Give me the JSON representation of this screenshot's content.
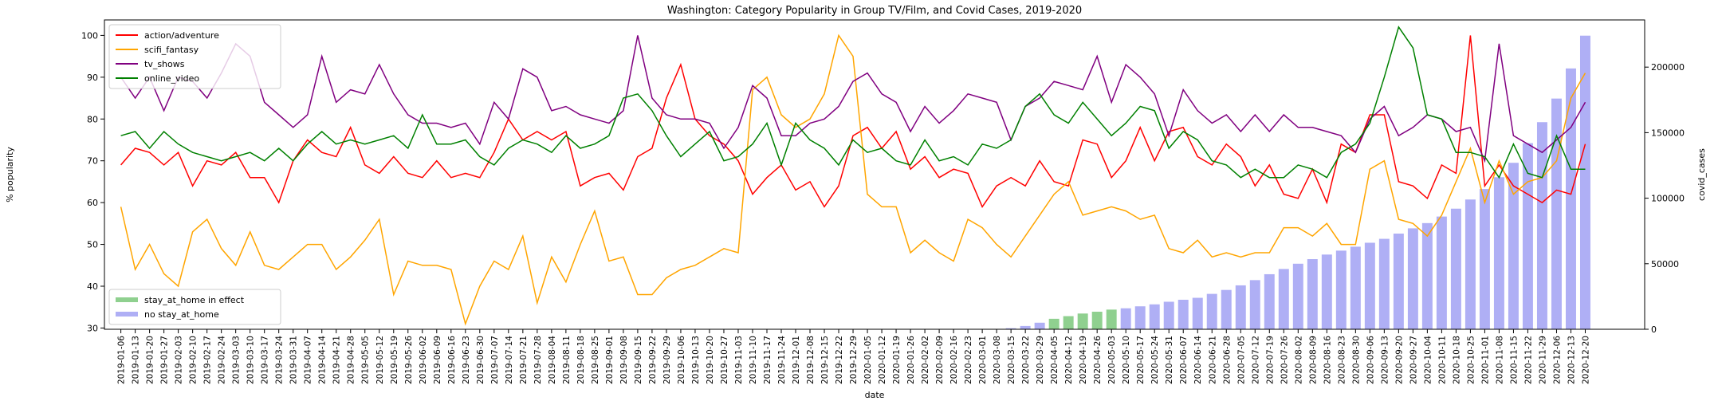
{
  "chart_data": {
    "type": "line",
    "title": "Washington: Category Popularity in Group TV/Film, and Covid Cases, 2019-2020",
    "x_label": "date",
    "y_label": "% popularity",
    "y2_label": "covid_cases",
    "categories": [
      "2019-01-06",
      "2019-01-13",
      "2019-01-20",
      "2019-01-27",
      "2019-02-03",
      "2019-02-10",
      "2019-02-17",
      "2019-02-24",
      "2019-03-03",
      "2019-03-10",
      "2019-03-17",
      "2019-03-24",
      "2019-03-31",
      "2019-04-07",
      "2019-04-14",
      "2019-04-21",
      "2019-04-28",
      "2019-05-05",
      "2019-05-12",
      "2019-05-19",
      "2019-05-26",
      "2019-06-02",
      "2019-06-09",
      "2019-06-16",
      "2019-06-23",
      "2019-06-30",
      "2019-07-07",
      "2019-07-14",
      "2019-07-21",
      "2019-07-28",
      "2019-08-04",
      "2019-08-11",
      "2019-08-18",
      "2019-08-25",
      "2019-09-01",
      "2019-09-08",
      "2019-09-15",
      "2019-09-22",
      "2019-09-29",
      "2019-10-06",
      "2019-10-13",
      "2019-10-20",
      "2019-10-27",
      "2019-11-03",
      "2019-11-10",
      "2019-11-17",
      "2019-11-24",
      "2019-12-01",
      "2019-12-08",
      "2019-12-15",
      "2019-12-22",
      "2019-12-29",
      "2020-01-05",
      "2020-01-12",
      "2020-01-19",
      "2020-01-26",
      "2020-02-02",
      "2020-02-09",
      "2020-02-16",
      "2020-02-23",
      "2020-03-01",
      "2020-03-08",
      "2020-03-15",
      "2020-03-22",
      "2020-03-29",
      "2020-04-05",
      "2020-04-12",
      "2020-04-19",
      "2020-04-26",
      "2020-05-03",
      "2020-05-10",
      "2020-05-17",
      "2020-05-24",
      "2020-05-31",
      "2020-06-07",
      "2020-06-14",
      "2020-06-21",
      "2020-06-28",
      "2020-07-05",
      "2020-07-12",
      "2020-07-19",
      "2020-07-26",
      "2020-08-02",
      "2020-08-09",
      "2020-08-16",
      "2020-08-23",
      "2020-08-30",
      "2020-09-06",
      "2020-09-13",
      "2020-09-20",
      "2020-09-27",
      "2020-10-04",
      "2020-10-11",
      "2020-10-18",
      "2020-10-25",
      "2020-11-01",
      "2020-11-08",
      "2020-11-15",
      "2020-11-22",
      "2020-11-29",
      "2020-12-06",
      "2020-12-13",
      "2020-12-20"
    ],
    "series": [
      {
        "name": "action/adventure",
        "color": "#ff0000",
        "type": "line",
        "values": [
          69,
          73,
          72,
          69,
          72,
          64,
          70,
          69,
          72,
          66,
          66,
          60,
          70,
          75,
          72,
          71,
          78,
          69,
          67,
          71,
          67,
          66,
          70,
          66,
          67,
          66,
          72,
          80,
          75,
          77,
          75,
          77,
          64,
          66,
          67,
          63,
          71,
          73,
          85,
          93,
          80,
          76,
          74,
          70,
          62,
          66,
          69,
          63,
          65,
          59,
          64,
          76,
          78,
          73,
          77,
          68,
          71,
          66,
          68,
          67,
          59,
          64,
          66,
          64,
          70,
          65,
          64,
          75,
          74,
          66,
          70,
          78,
          70,
          77,
          78,
          71,
          69,
          74,
          71,
          64,
          69,
          62,
          61,
          68,
          60,
          74,
          72,
          81,
          81,
          65,
          64,
          61,
          69,
          67,
          100,
          64,
          69,
          64,
          62,
          60,
          63,
          62,
          74
        ]
      },
      {
        "name": "scifi_fantasy",
        "color": "#ffa500",
        "type": "line",
        "values": [
          59,
          44,
          50,
          43,
          40,
          53,
          56,
          49,
          45,
          53,
          45,
          44,
          47,
          50,
          50,
          44,
          47,
          51,
          56,
          38,
          46,
          45,
          45,
          44,
          31,
          40,
          46,
          44,
          52,
          36,
          47,
          41,
          50,
          58,
          46,
          47,
          38,
          38,
          42,
          44,
          45,
          47,
          49,
          48,
          87,
          90,
          81,
          78,
          80,
          86,
          100,
          95,
          62,
          59,
          59,
          48,
          51,
          48,
          46,
          56,
          54,
          50,
          47,
          52,
          57,
          62,
          65,
          57,
          58,
          59,
          58,
          56,
          57,
          49,
          48,
          51,
          47,
          48,
          47,
          48,
          48,
          54,
          54,
          52,
          55,
          50,
          50,
          68,
          70,
          56,
          55,
          52,
          57,
          65,
          73,
          60,
          70,
          62,
          65,
          66,
          70,
          85,
          91
        ]
      },
      {
        "name": "tv_shows",
        "color": "#800080",
        "type": "line",
        "values": [
          90,
          85,
          90,
          82,
          90,
          89,
          85,
          91,
          98,
          95,
          84,
          81,
          78,
          81,
          95,
          84,
          87,
          86,
          93,
          86,
          81,
          79,
          79,
          78,
          79,
          74,
          84,
          80,
          92,
          90,
          82,
          83,
          81,
          80,
          79,
          82,
          100,
          85,
          81,
          80,
          80,
          79,
          73,
          78,
          88,
          85,
          76,
          76,
          79,
          80,
          83,
          89,
          91,
          86,
          84,
          77,
          83,
          79,
          82,
          86,
          85,
          84,
          75,
          83,
          85,
          89,
          88,
          87,
          95,
          84,
          93,
          90,
          86,
          76,
          87,
          82,
          79,
          81,
          77,
          81,
          77,
          81,
          78,
          78,
          77,
          76,
          72,
          80,
          83,
          76,
          78,
          81,
          80,
          77,
          78,
          70,
          98,
          76,
          74,
          72,
          75,
          78,
          84
        ]
      },
      {
        "name": "online_video",
        "color": "#008000",
        "type": "line",
        "values": [
          76,
          77,
          73,
          77,
          74,
          72,
          71,
          70,
          71,
          72,
          70,
          73,
          70,
          74,
          77,
          74,
          75,
          74,
          75,
          76,
          73,
          81,
          74,
          74,
          75,
          71,
          69,
          73,
          75,
          74,
          72,
          76,
          73,
          74,
          76,
          85,
          86,
          82,
          76,
          71,
          74,
          77,
          70,
          71,
          74,
          79,
          69,
          79,
          75,
          73,
          69,
          75,
          72,
          73,
          70,
          69,
          75,
          70,
          71,
          69,
          74,
          73,
          75,
          83,
          86,
          81,
          79,
          84,
          80,
          76,
          79,
          83,
          82,
          73,
          77,
          75,
          70,
          69,
          66,
          68,
          66,
          66,
          69,
          68,
          66,
          72,
          74,
          79,
          90,
          102,
          97,
          81,
          80,
          72,
          72,
          71,
          66,
          74,
          67,
          66,
          76,
          68,
          68
        ]
      },
      {
        "name": "stay_at_home in effect",
        "color": "#8fd08f",
        "type": "bar",
        "axis": "y2",
        "values": [
          null,
          null,
          null,
          null,
          null,
          null,
          null,
          null,
          null,
          null,
          null,
          null,
          null,
          null,
          null,
          null,
          null,
          null,
          null,
          null,
          null,
          null,
          null,
          null,
          null,
          null,
          null,
          null,
          null,
          null,
          null,
          null,
          null,
          null,
          null,
          null,
          null,
          null,
          null,
          null,
          null,
          null,
          null,
          null,
          null,
          null,
          null,
          null,
          null,
          null,
          null,
          null,
          null,
          null,
          null,
          null,
          null,
          null,
          null,
          null,
          null,
          null,
          null,
          null,
          null,
          8000,
          10000,
          12000,
          13400,
          15000,
          null,
          null,
          null,
          null,
          null,
          null,
          null,
          null,
          null,
          null,
          null,
          null,
          null,
          null,
          null,
          null,
          null,
          null,
          null,
          null,
          null,
          null,
          null,
          null,
          null,
          null,
          null,
          null,
          null,
          null,
          null,
          null,
          null
        ]
      },
      {
        "name": "no stay_at_home",
        "color": "#afaff5",
        "type": "bar",
        "axis": "y2",
        "values": [
          null,
          null,
          null,
          null,
          null,
          null,
          null,
          null,
          null,
          null,
          null,
          null,
          null,
          null,
          null,
          null,
          null,
          null,
          null,
          null,
          null,
          null,
          null,
          null,
          null,
          null,
          null,
          null,
          null,
          null,
          null,
          null,
          null,
          null,
          null,
          null,
          null,
          null,
          null,
          null,
          null,
          null,
          null,
          null,
          null,
          null,
          null,
          null,
          null,
          null,
          null,
          null,
          null,
          null,
          null,
          null,
          null,
          null,
          null,
          null,
          null,
          null,
          800,
          2500,
          5000,
          null,
          null,
          null,
          null,
          null,
          16000,
          17500,
          19000,
          21000,
          22500,
          24000,
          27000,
          30000,
          33500,
          37500,
          42000,
          46000,
          50000,
          53500,
          57000,
          60000,
          63000,
          66000,
          69000,
          73000,
          77000,
          81000,
          86000,
          92000,
          99000,
          107000,
          116000,
          127000,
          142000,
          158000,
          176000,
          199000,
          224000
        ]
      }
    ],
    "ylim": [
      29.7,
      103.7
    ],
    "yticks": [
      30,
      40,
      50,
      60,
      70,
      80,
      90,
      100
    ],
    "y2lim": [
      0,
      236000
    ],
    "y2ticks": [
      0,
      50000,
      100000,
      150000,
      200000
    ],
    "legend": "upper left",
    "bar_legend": "lower left"
  }
}
